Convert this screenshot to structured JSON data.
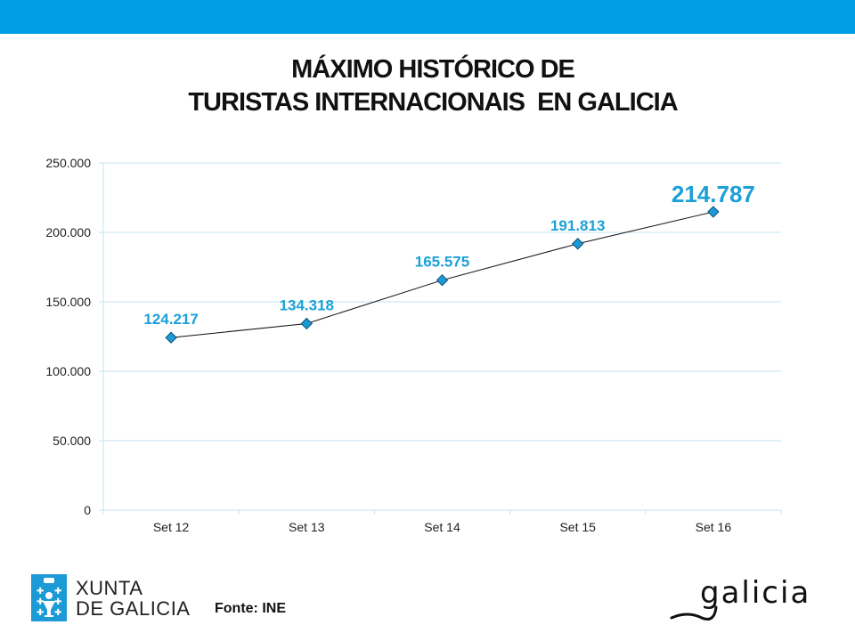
{
  "title_line1": "MÁXIMO HISTÓRICO DE",
  "title_line2": "TURISTAS INTERNACIONAIS  EN GALICIA",
  "footer": {
    "source": "Fonte: INE",
    "logo_left": "XUNTA DE GALICIA",
    "logo_left_line1": "XUNTA",
    "logo_left_line2": "DE GALICIA",
    "logo_right": "galicia"
  },
  "colors": {
    "topbar": "#009fe3",
    "series": "#1c9ad6",
    "labels": "#1ba0d8",
    "grid": "#c6e3f2"
  },
  "chart_data": {
    "type": "line",
    "title": "MÁXIMO HISTÓRICO DE TURISTAS INTERNACIONAIS EN GALICIA",
    "categories": [
      "Set 12",
      "Set 13",
      "Set 14",
      "Set 15",
      "Set 16"
    ],
    "values": [
      124217,
      134318,
      165575,
      191813,
      214787
    ],
    "data_labels": [
      "124.217",
      "134.318",
      "165.575",
      "191.813",
      "214.787"
    ],
    "ylim": [
      0,
      250000
    ],
    "yticks": [
      0,
      50000,
      100000,
      150000,
      200000,
      250000
    ],
    "ytick_labels": [
      "0",
      "50.000",
      "100.000",
      "150.000",
      "200.000",
      "250.000"
    ],
    "grid": true,
    "xlabel": "",
    "ylabel": ""
  }
}
